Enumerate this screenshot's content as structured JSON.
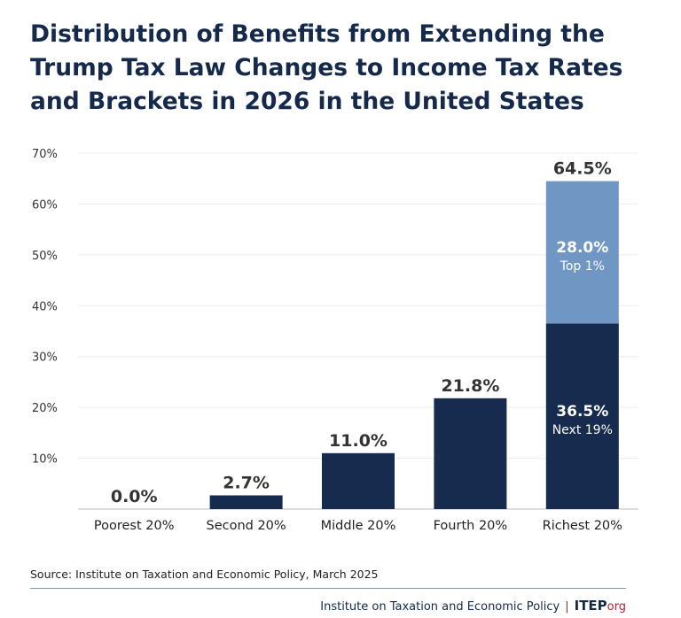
{
  "title_lines": [
    "Distribution of Benefits from Extending the",
    "Trump Tax Law Changes to Income Tax Rates",
    "and Brackets in 2026 in the United States"
  ],
  "source": "Source: Institute on Taxation and Economic Policy, March 2025",
  "footer": {
    "org": "Institute on Taxation and Economic Policy",
    "logo": "ITEP",
    "logo_suffix": "org"
  },
  "colors": {
    "dark": "#162b4e",
    "light": "#7096c4",
    "title": "#15294b"
  },
  "chart_data": {
    "type": "bar",
    "stacked": true,
    "categories": [
      "Poorest 20%",
      "Second 20%",
      "Middle 20%",
      "Fourth 20%",
      "Richest 20%"
    ],
    "totals": [
      0.0,
      2.7,
      11.0,
      21.8,
      64.5
    ],
    "total_labels": [
      "0.0%",
      "2.7%",
      "11.0%",
      "21.8%",
      "64.5%"
    ],
    "segments": [
      {
        "category": "Richest 20%",
        "value": 36.5,
        "label": "36.5%",
        "sublabel": "Next 19%",
        "color": "#162b4e"
      },
      {
        "category": "Richest 20%",
        "value": 28.0,
        "label": "28.0%",
        "sublabel": "Top 1%",
        "color": "#7096c4"
      }
    ],
    "ylim": [
      0,
      70
    ],
    "yticks": [
      10,
      20,
      30,
      40,
      50,
      60,
      70
    ],
    "ytick_labels": [
      "10%",
      "20%",
      "30%",
      "40%",
      "50%",
      "60%",
      "70%"
    ],
    "grid": true
  }
}
